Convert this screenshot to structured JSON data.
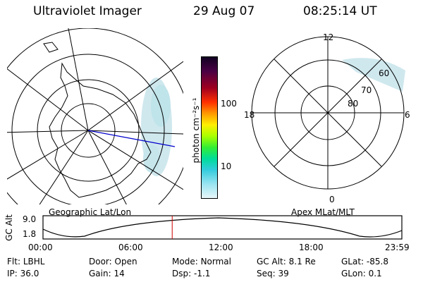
{
  "header": {
    "instrument": "Ultraviolet Imager",
    "date": "29 Aug 07",
    "time": "08:25:14 UT"
  },
  "colorbar": {
    "unit_label": "photon cm⁻²s⁻¹",
    "ticks": [
      "100",
      "10"
    ]
  },
  "left_panel": {
    "caption": "Geographic Lat/Lon"
  },
  "right_panel": {
    "caption": "Apex MLat/MLT",
    "mlt_labels": {
      "top": "12",
      "left": "18",
      "right": "6",
      "bottom": "0"
    },
    "lat_labels": [
      "60",
      "70",
      "80"
    ]
  },
  "orbit_plot": {
    "ylabel": "GC Alt",
    "yticks": [
      "9.0",
      "1.8"
    ],
    "xticks": [
      "00:00",
      "06:00",
      "12:00",
      "18:00",
      "23:59"
    ],
    "current_time_fraction": 0.36
  },
  "footer": {
    "row1": [
      {
        "label": "Flt:",
        "value": "LBHL"
      },
      {
        "label": "Door:",
        "value": "Open"
      },
      {
        "label": "Mode:",
        "value": "Normal"
      },
      {
        "label": "GC Alt:",
        "value": "8.1 Re"
      },
      {
        "label": "GLat:",
        "value": "-85.8"
      }
    ],
    "row2": [
      {
        "label": "IP:",
        "value": "36.0"
      },
      {
        "label": "Gain:",
        "value": "14"
      },
      {
        "label": "Dsp:",
        "value": "-1.1"
      },
      {
        "label": "Seq:",
        "value": "39"
      },
      {
        "label": "GLon:",
        "value": "0.1"
      }
    ]
  }
}
